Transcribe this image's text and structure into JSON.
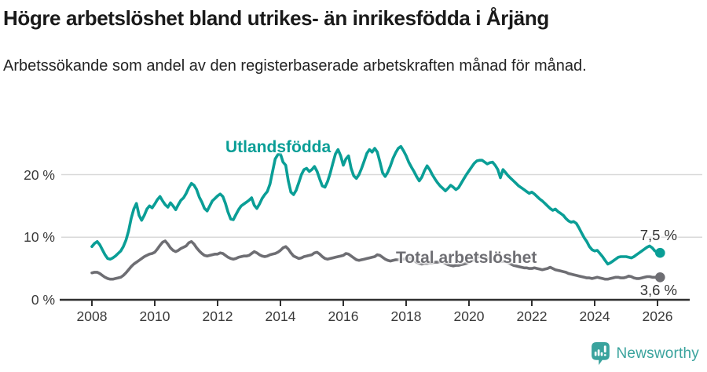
{
  "title": "Högre arbetslöshet bland utrikes- än inrikesfödda i Årjäng",
  "subtitle": "Arbetssökande som andel av den registerbaserade arbetskraften månad för månad.",
  "footer": {
    "brand": "Newsworthy"
  },
  "colors": {
    "foreign_line": "#0a9e96",
    "total_line": "#6e6e73",
    "grid": "#d9d9d9",
    "axis": "#2f2f2f",
    "tick_text": "#3a3a3a",
    "title_text": "#1a1a1a",
    "logo": "#3aa39d"
  },
  "labels": {
    "series_foreign": "Utlandsfödda",
    "series_total": "Total arbetslöshet",
    "end_foreign": "7,5 %",
    "end_total": "3,6 %"
  },
  "chart_data": {
    "type": "line",
    "unit": "%",
    "title": "Högre arbetslöshet bland utrikes- än inrikesfödda i Årjäng",
    "subtitle": "Arbetssökande som andel av den registerbaserade arbetskraften månad för månad.",
    "x_start_year": 2008,
    "x_frequency": "monthly",
    "x_end": "2026-02",
    "ylim": [
      0,
      26
    ],
    "grid": "horizontal",
    "y_ticks": [
      {
        "value": 0,
        "label": "0 %"
      },
      {
        "value": 10,
        "label": "10 %"
      },
      {
        "value": 20,
        "label": "20 %"
      }
    ],
    "x_ticks": [
      {
        "value": 2008,
        "label": "2008"
      },
      {
        "value": 2010,
        "label": "2010"
      },
      {
        "value": 2012,
        "label": "2012"
      },
      {
        "value": 2014,
        "label": "2014"
      },
      {
        "value": 2016,
        "label": "2016"
      },
      {
        "value": 2018,
        "label": "2018"
      },
      {
        "value": 2020,
        "label": "2020"
      },
      {
        "value": 2022,
        "label": "2022"
      },
      {
        "value": 2024,
        "label": "2024"
      },
      {
        "value": 2026,
        "label": "2026"
      }
    ],
    "series": [
      {
        "name": "Utlandsfödda",
        "color": "#0a9e96",
        "end_label": "7,5 %",
        "end_value": 7.5,
        "values": [
          8.5,
          9.0,
          9.3,
          8.8,
          8.0,
          7.2,
          6.6,
          6.5,
          6.7,
          7.0,
          7.4,
          7.8,
          8.5,
          9.5,
          11.0,
          13.0,
          14.5,
          15.4,
          13.5,
          12.7,
          13.5,
          14.5,
          15.0,
          14.7,
          15.3,
          16.0,
          16.5,
          15.8,
          15.2,
          14.8,
          15.5,
          15.0,
          14.4,
          15.2,
          15.9,
          16.3,
          17.0,
          17.9,
          18.6,
          18.3,
          17.6,
          16.4,
          15.6,
          14.6,
          14.2,
          15.0,
          15.8,
          16.2,
          16.6,
          16.9,
          16.5,
          15.4,
          14.0,
          12.9,
          12.8,
          13.6,
          14.4,
          15.0,
          15.3,
          15.6,
          15.9,
          16.3,
          15.1,
          14.6,
          15.3,
          16.2,
          16.8,
          17.3,
          18.5,
          20.5,
          22.5,
          23.2,
          23.3,
          22.0,
          21.5,
          19.0,
          17.2,
          16.8,
          17.5,
          18.7,
          20.0,
          20.8,
          21.0,
          20.5,
          20.8,
          21.3,
          20.5,
          19.3,
          18.2,
          18.0,
          18.9,
          20.2,
          21.8,
          23.3,
          24.0,
          23.0,
          21.5,
          22.5,
          23.0,
          21.0,
          19.8,
          19.4,
          20.0,
          21.0,
          22.2,
          23.4,
          24.0,
          23.6,
          24.2,
          23.6,
          22.0,
          20.3,
          19.7,
          20.4,
          21.4,
          22.6,
          23.5,
          24.2,
          24.5,
          23.8,
          23.0,
          22.0,
          21.2,
          20.5,
          19.7,
          19.0,
          19.6,
          20.6,
          21.4,
          20.8,
          20.0,
          19.3,
          18.7,
          18.2,
          17.8,
          17.4,
          17.8,
          18.3,
          18.0,
          17.6,
          17.9,
          18.6,
          19.3,
          20.0,
          20.6,
          21.2,
          21.8,
          22.2,
          22.3,
          22.3,
          22.0,
          21.7,
          21.9,
          22.0,
          21.5,
          20.8,
          19.5,
          20.8,
          20.3,
          19.8,
          19.4,
          19.0,
          18.6,
          18.2,
          17.9,
          17.6,
          17.3,
          17.0,
          17.2,
          16.9,
          16.5,
          16.1,
          15.8,
          15.4,
          15.0,
          14.6,
          14.3,
          14.5,
          14.1,
          13.8,
          13.5,
          13.0,
          12.6,
          12.4,
          12.5,
          12.2,
          11.5,
          10.7,
          9.9,
          9.3,
          8.5,
          8.0,
          7.8,
          7.9,
          7.4,
          6.9,
          6.3,
          5.7,
          5.9,
          6.2,
          6.5,
          6.8,
          6.9,
          6.9,
          6.9,
          6.8,
          6.7,
          6.9,
          7.2,
          7.5,
          7.8,
          8.1,
          8.4,
          8.6,
          8.3,
          7.8,
          7.6,
          7.5
        ]
      },
      {
        "name": "Total arbetslöshet",
        "color": "#6e6e73",
        "end_label": "3,6 %",
        "end_value": 3.6,
        "values": [
          4.3,
          4.4,
          4.4,
          4.2,
          3.9,
          3.6,
          3.4,
          3.3,
          3.3,
          3.4,
          3.5,
          3.6,
          3.9,
          4.3,
          4.8,
          5.3,
          5.7,
          6.0,
          6.3,
          6.6,
          6.9,
          7.1,
          7.3,
          7.4,
          7.6,
          8.1,
          8.7,
          9.2,
          9.4,
          8.9,
          8.3,
          7.9,
          7.7,
          7.9,
          8.2,
          8.4,
          8.6,
          9.1,
          9.3,
          8.9,
          8.3,
          7.8,
          7.4,
          7.1,
          7.0,
          7.1,
          7.2,
          7.3,
          7.3,
          7.5,
          7.4,
          7.1,
          6.8,
          6.6,
          6.5,
          6.6,
          6.8,
          6.9,
          7.0,
          7.0,
          7.1,
          7.4,
          7.7,
          7.5,
          7.2,
          7.0,
          6.9,
          7.0,
          7.2,
          7.3,
          7.4,
          7.6,
          7.9,
          8.3,
          8.5,
          8.1,
          7.5,
          7.0,
          6.8,
          6.6,
          6.7,
          6.9,
          7.0,
          7.1,
          7.2,
          7.5,
          7.6,
          7.3,
          6.9,
          6.6,
          6.5,
          6.6,
          6.7,
          6.8,
          6.9,
          7.0,
          7.1,
          7.4,
          7.3,
          7.0,
          6.7,
          6.4,
          6.3,
          6.4,
          6.5,
          6.6,
          6.7,
          6.8,
          6.9,
          7.2,
          7.1,
          6.8,
          6.5,
          6.3,
          6.2,
          6.3,
          6.4,
          6.4,
          6.5,
          6.5,
          6.6,
          6.7,
          6.6,
          6.3,
          6.0,
          5.8,
          5.7,
          5.8,
          5.8,
          5.9,
          5.9,
          6.0,
          6.0,
          6.1,
          6.0,
          5.8,
          5.6,
          5.5,
          5.4,
          5.5,
          5.5,
          5.6,
          5.7,
          5.8,
          6.0,
          6.2,
          6.5,
          6.8,
          6.9,
          6.8,
          6.7,
          6.6,
          6.5,
          6.4,
          6.3,
          6.2,
          6.1,
          6.2,
          6.1,
          5.9,
          5.7,
          5.5,
          5.4,
          5.3,
          5.2,
          5.1,
          5.1,
          5.0,
          5.0,
          5.1,
          5.0,
          4.9,
          4.8,
          4.9,
          5.0,
          5.2,
          5.0,
          4.8,
          4.7,
          4.6,
          4.5,
          4.4,
          4.2,
          4.1,
          4.0,
          3.9,
          3.8,
          3.7,
          3.6,
          3.5,
          3.5,
          3.4,
          3.5,
          3.6,
          3.5,
          3.4,
          3.3,
          3.3,
          3.4,
          3.5,
          3.6,
          3.6,
          3.5,
          3.5,
          3.6,
          3.8,
          3.7,
          3.5,
          3.4,
          3.4,
          3.5,
          3.6,
          3.7,
          3.7,
          3.6,
          3.6,
          3.6,
          3.6
        ]
      }
    ]
  }
}
